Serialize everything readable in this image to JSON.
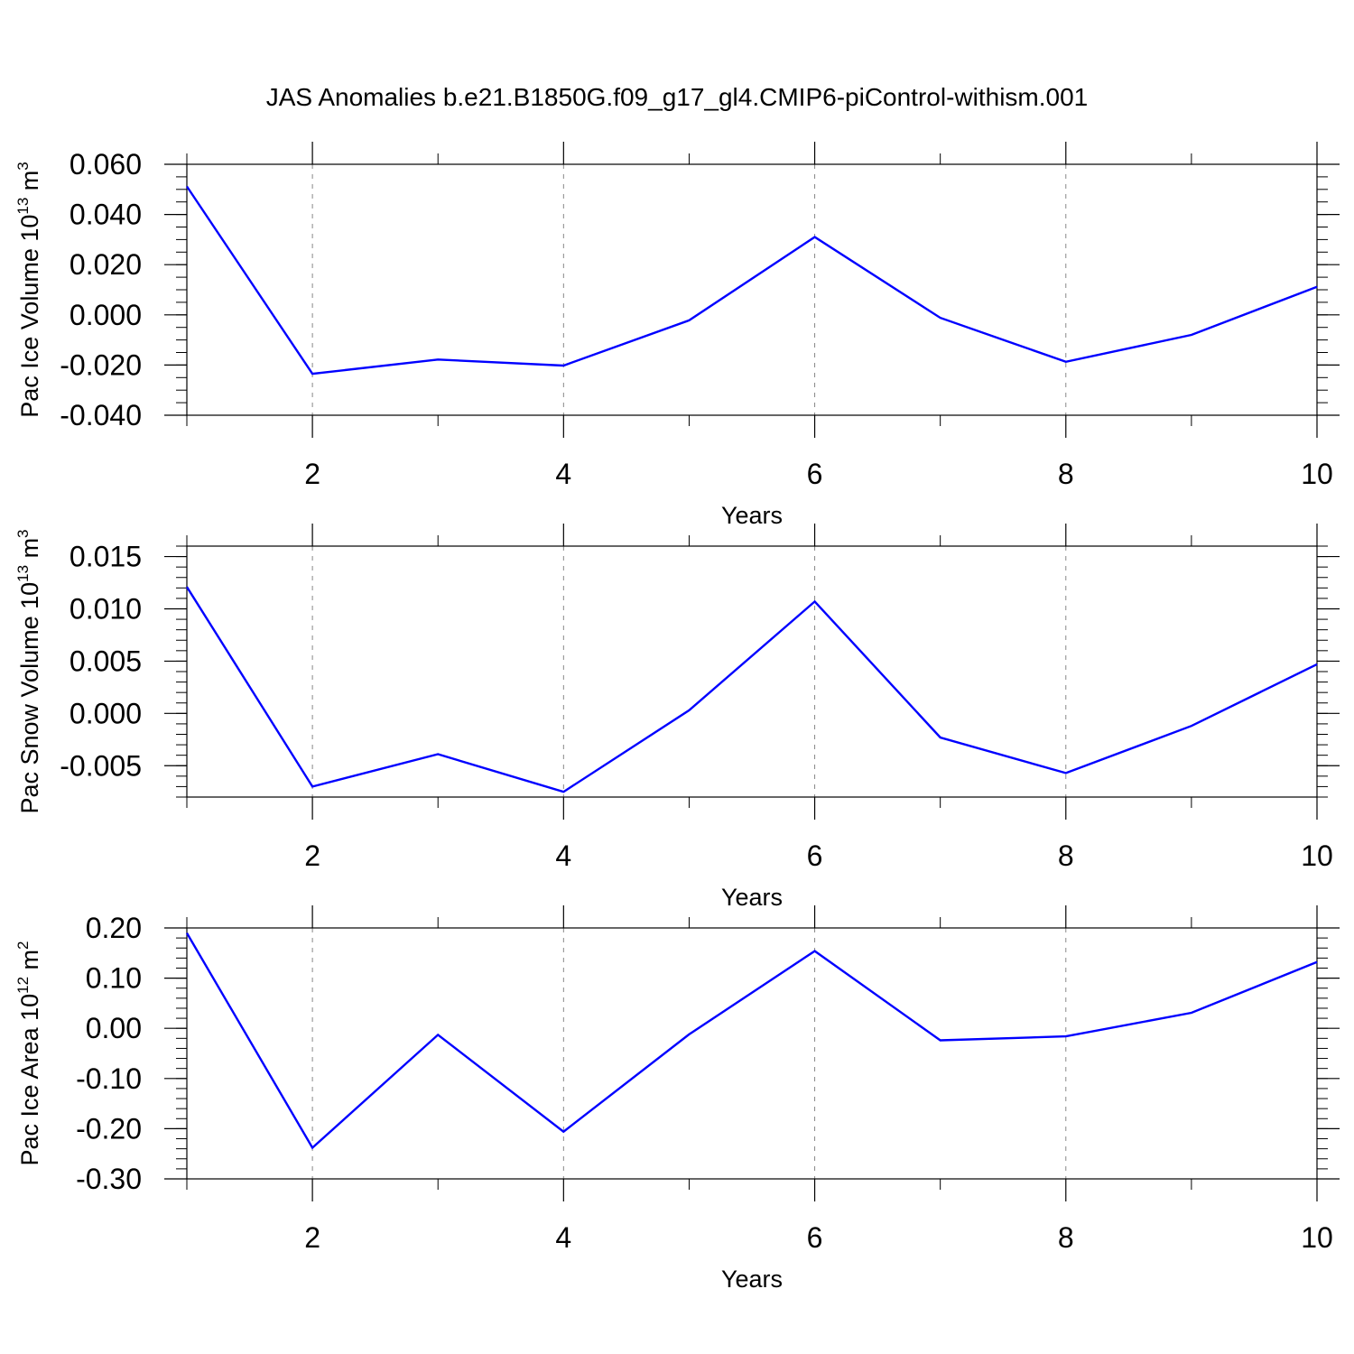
{
  "title": "JAS Anomalies b.e21.B1850G.f09_g17_gl4.CMIP6-piControl-withism.001",
  "colors": {
    "series": "#0000ff",
    "axis": "#000000",
    "grid": "#888888"
  },
  "chart_data": [
    {
      "type": "line",
      "title": "",
      "xlabel": "Years",
      "ylabel": {
        "text": "Pac Ice Volume 10",
        "sup": "13",
        "unit": "m",
        "unit_sup": "3"
      },
      "xlim": [
        1,
        10
      ],
      "ylim": [
        -0.04,
        0.06
      ],
      "x_ticks": [
        "2",
        "4",
        "6",
        "8",
        "10"
      ],
      "y_ticks": [
        "-0.040",
        "-0.020",
        "0.000",
        "0.020",
        "0.040",
        "0.060"
      ],
      "grid": "dashed vertical at major x ticks",
      "x": [
        1,
        2,
        3,
        4,
        5,
        6,
        7,
        8,
        9,
        10
      ],
      "series": [
        {
          "values": [
            0.0512,
            -0.0235,
            -0.0178,
            -0.0202,
            -0.0022,
            0.031,
            -0.0012,
            -0.0187,
            -0.008,
            0.0112
          ]
        }
      ]
    },
    {
      "type": "line",
      "title": "",
      "xlabel": "Years",
      "ylabel": {
        "text": "Pac Snow Volume 10",
        "sup": "13",
        "unit": "m",
        "unit_sup": "3"
      },
      "xlim": [
        1,
        10
      ],
      "ylim": [
        -0.008,
        0.016
      ],
      "x_ticks": [
        "2",
        "4",
        "6",
        "8",
        "10"
      ],
      "y_ticks": [
        "-0.005",
        "0.000",
        "0.005",
        "0.010",
        "0.015"
      ],
      "grid": "dashed vertical at major x ticks",
      "x": [
        1,
        2,
        3,
        4,
        5,
        6,
        7,
        8,
        9,
        10
      ],
      "series": [
        {
          "values": [
            0.0121,
            -0.007,
            -0.0039,
            -0.0075,
            0.0003,
            0.0107,
            -0.0023,
            -0.0057,
            -0.0012,
            0.0047
          ]
        }
      ]
    },
    {
      "type": "line",
      "title": "",
      "xlabel": "Years",
      "ylabel": {
        "text": "Pac Ice Area 10",
        "sup": "12",
        "unit": "m",
        "unit_sup": "2"
      },
      "xlim": [
        1,
        10
      ],
      "ylim": [
        -0.3,
        0.2
      ],
      "x_ticks": [
        "2",
        "4",
        "6",
        "8",
        "10"
      ],
      "y_ticks": [
        "-0.30",
        "-0.20",
        "-0.10",
        "0.00",
        "0.10",
        "0.20"
      ],
      "grid": "dashed vertical at major x ticks",
      "x": [
        1,
        2,
        3,
        4,
        5,
        6,
        7,
        8,
        9,
        10
      ],
      "series": [
        {
          "values": [
            0.19,
            -0.238,
            -0.013,
            -0.206,
            -0.012,
            0.154,
            -0.024,
            -0.016,
            0.031,
            0.132
          ]
        }
      ]
    }
  ]
}
